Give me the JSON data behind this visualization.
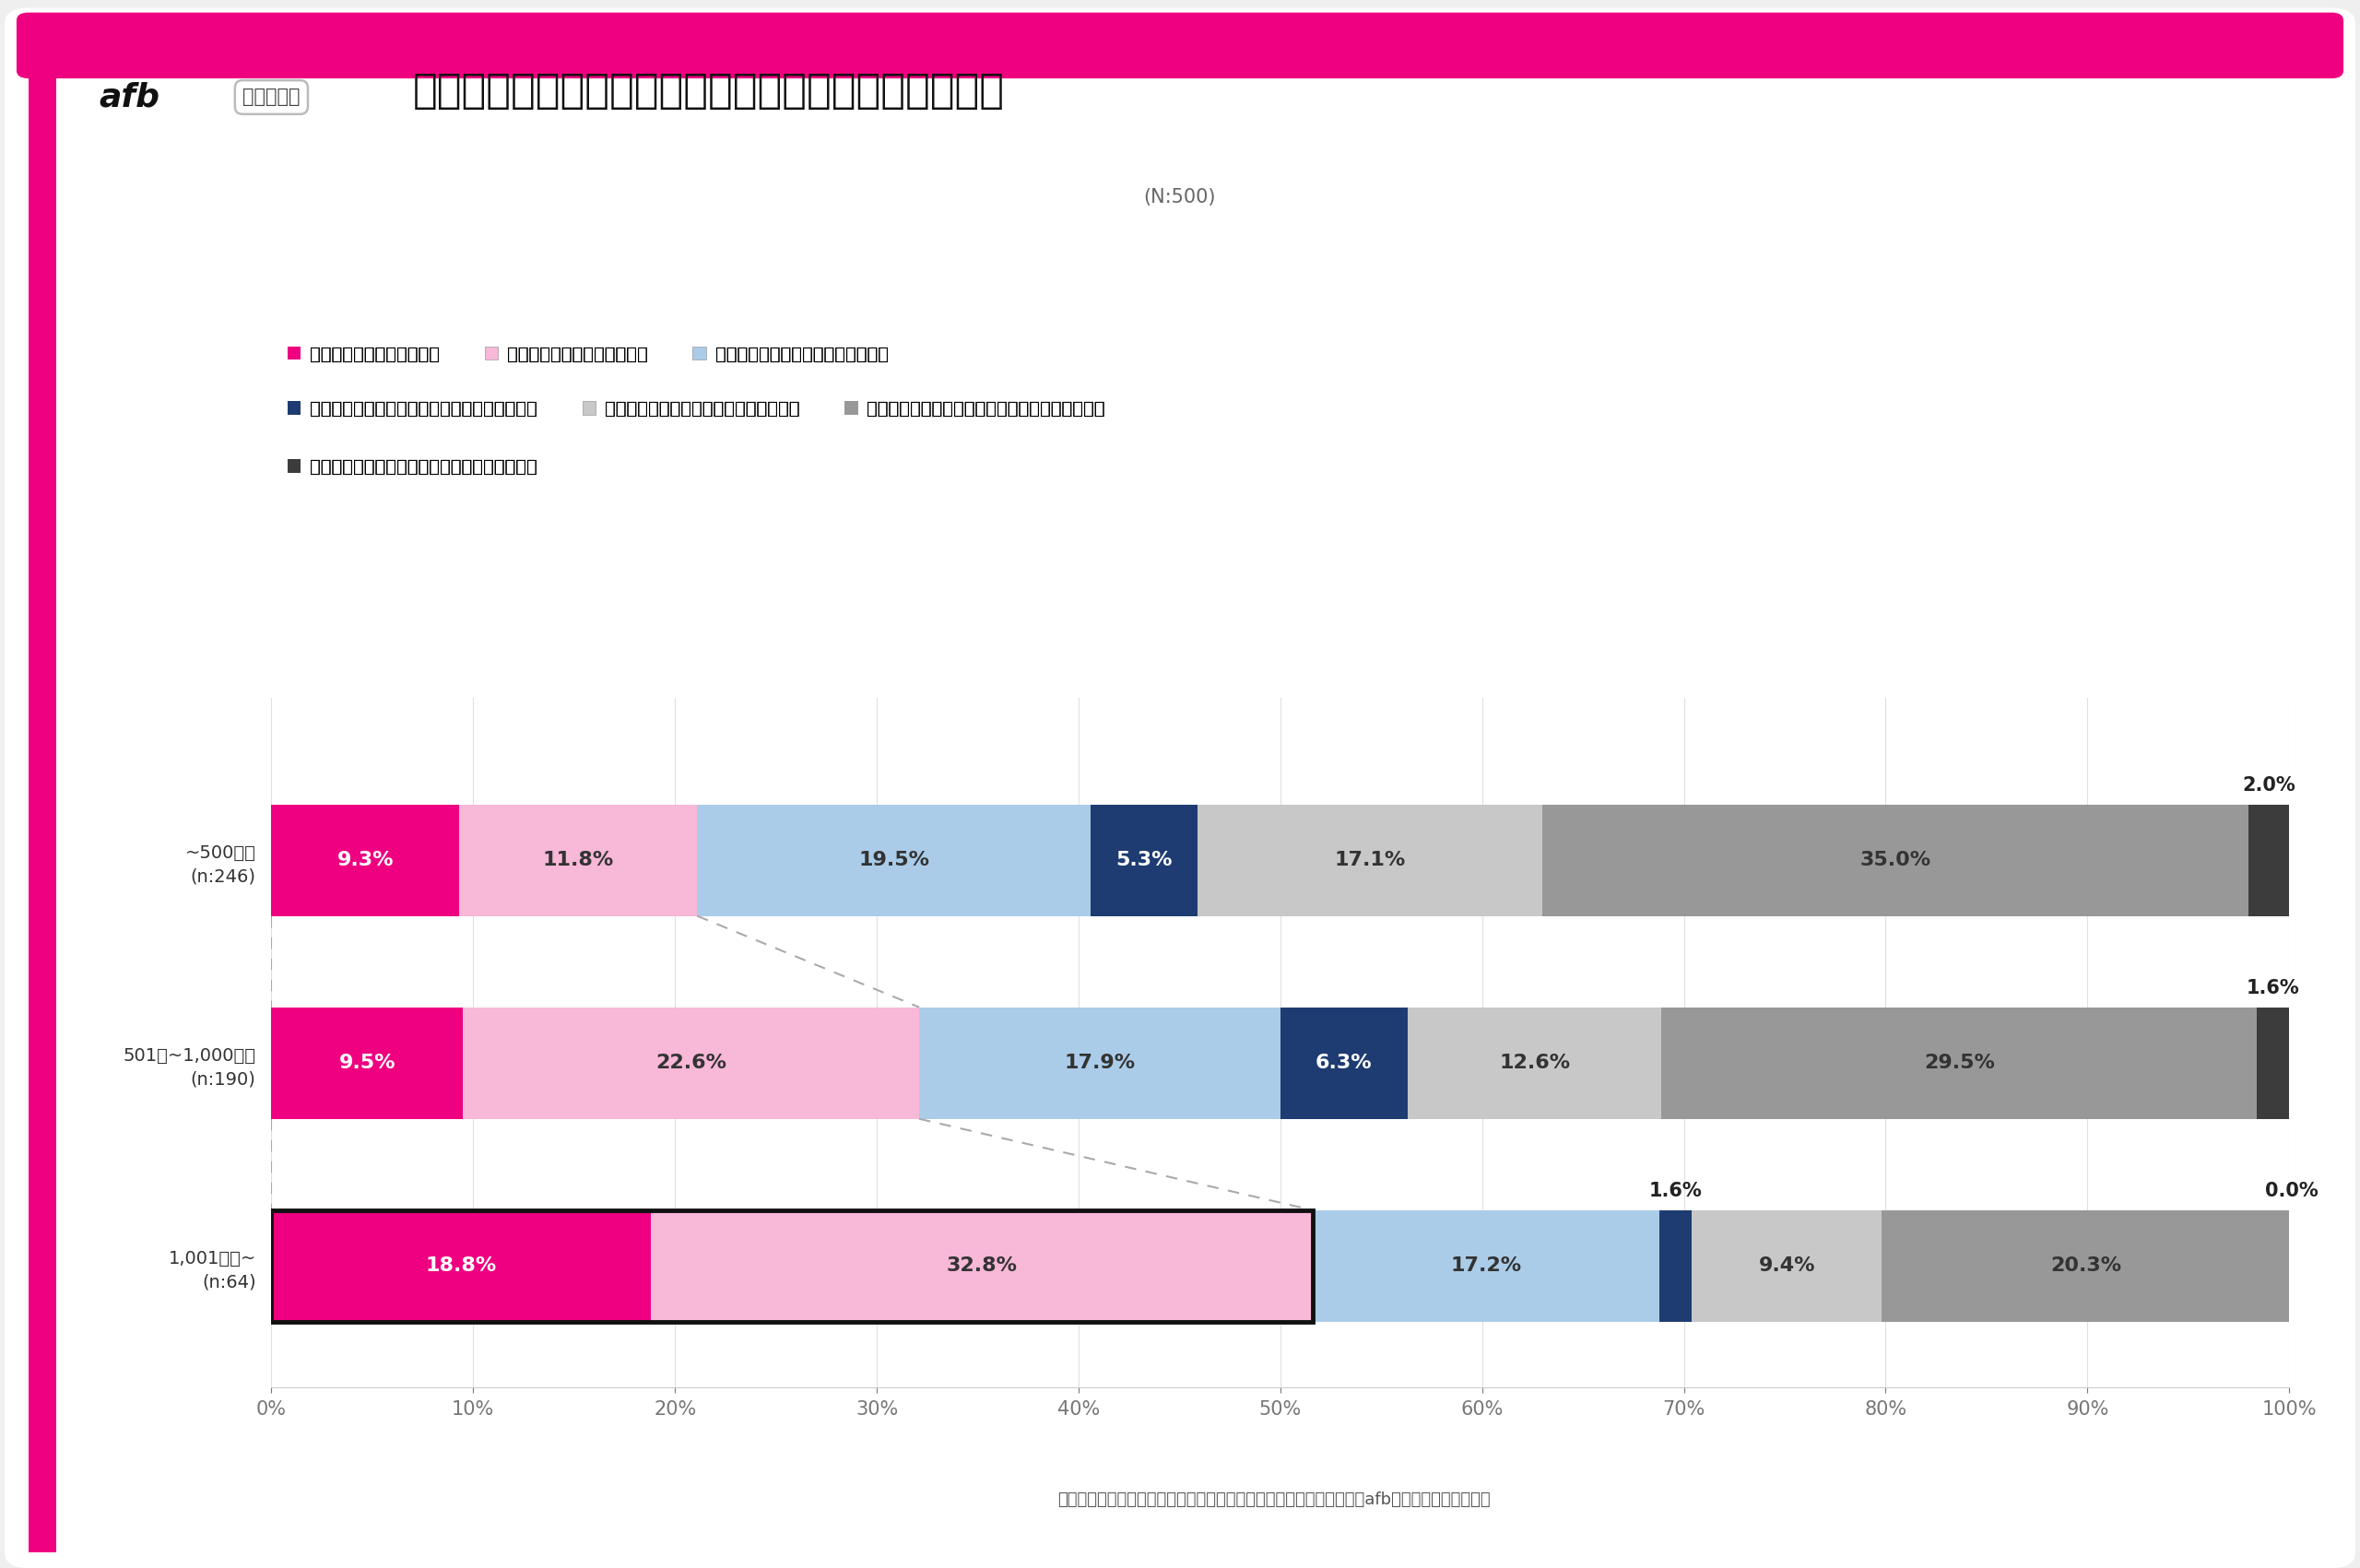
{
  "title": "政府による「リスキリング」支援を知っていますか？",
  "subtitle": "(N:500)",
  "tag": "世帯年収別",
  "footer": "株式会社フォーイット　パフォーマンステクノロジーネットワーク『afb（アフィビー）』調べ",
  "categories": [
    "~500万円\n(n:246)",
    "501万~1,000万円\n(n:190)",
    "1,001万円~\n(n:64)"
  ],
  "segments": [
    {
      "label": "知っていて、活用する予定",
      "color": "#EE0080",
      "text_color": "white"
    },
    {
      "label": "知っていて、気になっている",
      "color": "#F8B8D8",
      "text_color": "#333333"
    },
    {
      "label": "知っているが、活用する予定はない",
      "color": "#AACCE8",
      "text_color": "#333333"
    },
    {
      "label": "知らない（今回知って、活用しようと思った）",
      "color": "#1E3C72",
      "text_color": "white"
    },
    {
      "label": "知らない（今回知って、興味を持った）",
      "color": "#C8C8C8",
      "text_color": "#333333"
    },
    {
      "label": "知らない（今回知ったが、よく分からなかった）",
      "color": "#989898",
      "text_color": "#333333"
    },
    {
      "label": "知らない（今回知ったが、活用しないと思う）",
      "color": "#3C3C3C",
      "text_color": "white"
    }
  ],
  "values": [
    [
      9.3,
      11.8,
      19.5,
      5.3,
      17.1,
      35.0,
      2.0
    ],
    [
      9.5,
      22.6,
      17.9,
      6.3,
      12.6,
      29.5,
      1.6
    ],
    [
      18.8,
      32.8,
      17.2,
      1.6,
      9.4,
      20.3,
      0.0
    ]
  ],
  "bar_height": 0.55,
  "accent_color": "#EE0080",
  "chart_bg": "#FFFFFF",
  "outer_bg": "#EFEFEF",
  "title_fontsize": 32,
  "label_fontsize": 16,
  "tick_fontsize": 15,
  "legend_fontsize": 14,
  "cat_fontsize": 14
}
